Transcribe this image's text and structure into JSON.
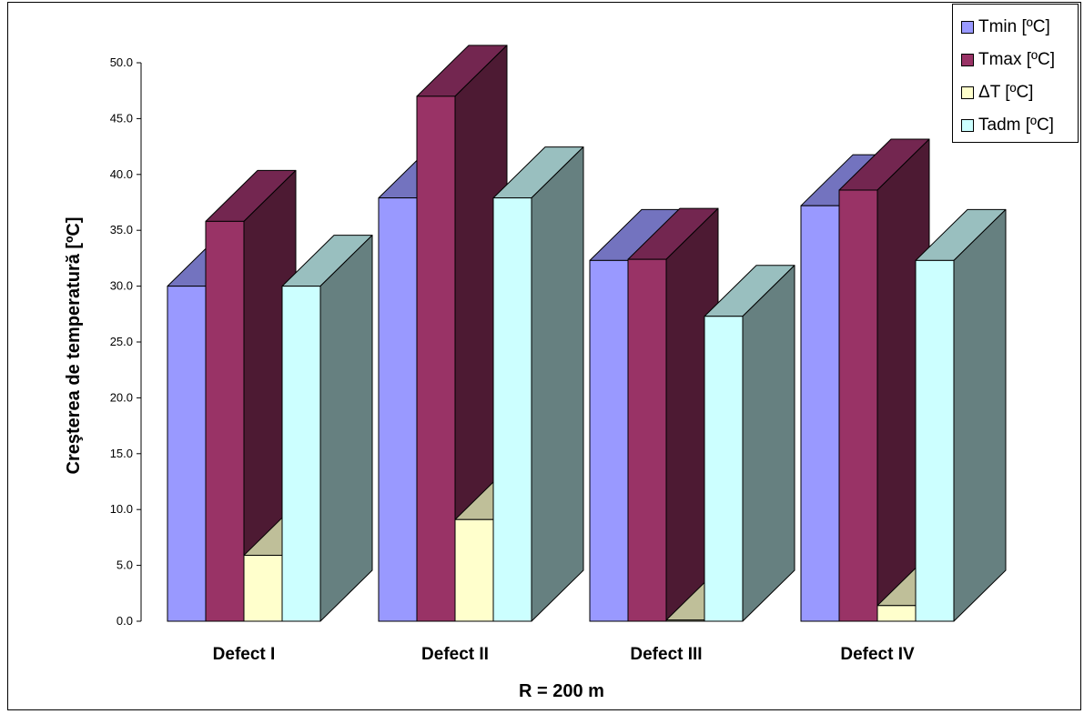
{
  "chart_data": {
    "type": "bar",
    "title": "",
    "xlabel": "R  = 200 m",
    "ylabel": "Creşterea de temperatură [ºC]",
    "categories": [
      "Defect I",
      "Defect II",
      "Defect III",
      "Defect IV"
    ],
    "ylim": [
      0,
      50
    ],
    "yticks": [
      "0.0",
      "5.0",
      "10.0",
      "15.0",
      "20.0",
      "25.0",
      "30.0",
      "35.0",
      "40.0",
      "45.0",
      "50.0"
    ],
    "three_d": true,
    "legend_position": "top-right",
    "grid": false,
    "series": [
      {
        "name": "Tmin [ºC]",
        "values": [
          30.0,
          37.9,
          32.3,
          37.2
        ],
        "color": "#9999ff",
        "top_color": "#7373bf",
        "side_color": "#4d4d80"
      },
      {
        "name": "Tmax [ºC]",
        "values": [
          35.8,
          47.0,
          32.4,
          38.6
        ],
        "color": "#993366",
        "top_color": "#732650",
        "side_color": "#4d1a33"
      },
      {
        "name": "ΔT [ºC]",
        "values": [
          5.9,
          9.1,
          0.1,
          1.4
        ],
        "color": "#ffffcc",
        "top_color": "#bfbf99",
        "side_color": "#808066"
      },
      {
        "name": "Tadm [ºC]",
        "values": [
          30.0,
          37.9,
          27.3,
          32.3
        ],
        "color": "#ccffff",
        "top_color": "#99bfbf",
        "side_color": "#668080"
      }
    ]
  }
}
